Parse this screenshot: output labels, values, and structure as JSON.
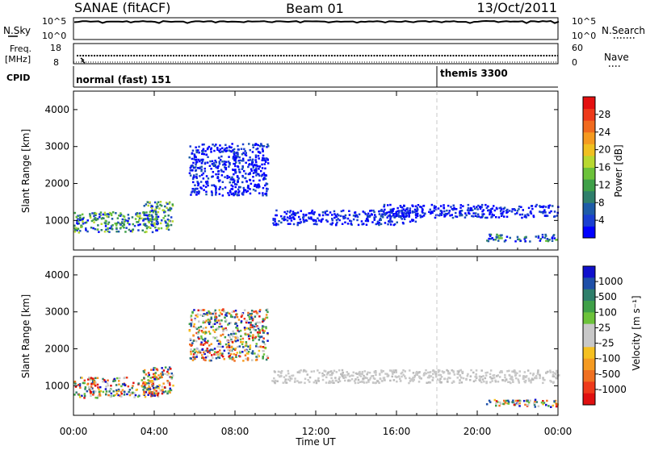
{
  "header": {
    "station": "SANAE (fitACF)",
    "beam": "Beam 01",
    "date": "13/Oct/2011"
  },
  "top_panels": {
    "nsky": {
      "label": "N.Sky",
      "ticks": [
        "10^5",
        "10^0"
      ],
      "right_label": "N.Search",
      "right_ticks": [
        "10^5",
        "10^0"
      ]
    },
    "freq": {
      "label_line1": "Freq.",
      "label_line2": "[MHz]",
      "ticks": [
        "18",
        "8"
      ],
      "right_label": "Nave",
      "right_ticks": [
        "60",
        "0"
      ]
    },
    "cpid": {
      "label": "CPID",
      "segments": [
        {
          "start_h": 0,
          "text": "normal (fast) 151"
        },
        {
          "start_h": 18.0,
          "text": "themis 3300"
        }
      ]
    }
  },
  "chart_data": [
    {
      "type": "heatmap",
      "name": "power",
      "ylabel": "Slant Range [km]",
      "xlim": [
        0,
        24
      ],
      "ylim": [
        200,
        4500
      ],
      "yticks": [
        1000,
        2000,
        3000,
        4000
      ],
      "colorbar": {
        "label": "Power [dB]",
        "range": [
          0,
          32
        ],
        "ticks": [
          "4",
          "8",
          "12",
          "16",
          "20",
          "24",
          "28"
        ],
        "colors": [
          "#0000ff",
          "#1a3fd1",
          "#1e5ca8",
          "#2f7f6b",
          "#3fa048",
          "#6cc23a",
          "#b8d830",
          "#f0c020",
          "#f59a20",
          "#f06a1e",
          "#ee3a1a",
          "#e41010"
        ]
      },
      "echo_regions": [
        {
          "t0": 0.0,
          "t1": 4.2,
          "r0": 700,
          "r1": 1250,
          "level": "high"
        },
        {
          "t0": 3.4,
          "t1": 4.9,
          "r0": 750,
          "r1": 1550,
          "level": "high"
        },
        {
          "t0": 5.7,
          "t1": 9.6,
          "r0": 1700,
          "r1": 3100,
          "level": "low"
        },
        {
          "t0": 9.8,
          "t1": 17.0,
          "r0": 900,
          "r1": 1300,
          "level": "low"
        },
        {
          "t0": 15.0,
          "t1": 24.0,
          "r0": 1100,
          "r1": 1450,
          "level": "low"
        },
        {
          "t0": 20.4,
          "t1": 24.0,
          "r0": 450,
          "r1": 650,
          "level": "mixed"
        }
      ]
    },
    {
      "type": "heatmap",
      "name": "velocity",
      "ylabel": "Slant Range [km]",
      "xlabel": "Time UT",
      "xlim": [
        0,
        24
      ],
      "ylim": [
        200,
        4500
      ],
      "yticks": [
        1000,
        2000,
        3000,
        4000
      ],
      "xticks": [
        "00:00",
        "04:00",
        "08:00",
        "12:00",
        "16:00",
        "20:00",
        "00:00"
      ],
      "colorbar": {
        "label": "Velocity [m s⁻¹]",
        "ticks": [
          "1000",
          "500",
          "100",
          "25",
          "-25",
          "-100",
          "-500",
          "-1000"
        ],
        "colors": [
          "#1010cc",
          "#1e4fa8",
          "#2f7f6b",
          "#3fa048",
          "#6cc23a",
          "#c8c8c8",
          "#c8c8c8",
          "#f5c020",
          "#f59a20",
          "#f07020",
          "#ee3a1a",
          "#e01010"
        ]
      },
      "echo_regions": [
        {
          "t0": 0.0,
          "t1": 4.2,
          "r0": 700,
          "r1": 1250,
          "level": "mixed"
        },
        {
          "t0": 3.4,
          "t1": 4.9,
          "r0": 750,
          "r1": 1550,
          "level": "mixed"
        },
        {
          "t0": 5.7,
          "t1": 9.6,
          "r0": 1700,
          "r1": 3100,
          "level": "mixed"
        },
        {
          "t0": 9.8,
          "t1": 24.0,
          "r0": 1100,
          "r1": 1450,
          "level": "gray"
        },
        {
          "t0": 20.4,
          "t1": 24.0,
          "r0": 450,
          "r1": 650,
          "level": "mixed"
        }
      ]
    }
  ]
}
